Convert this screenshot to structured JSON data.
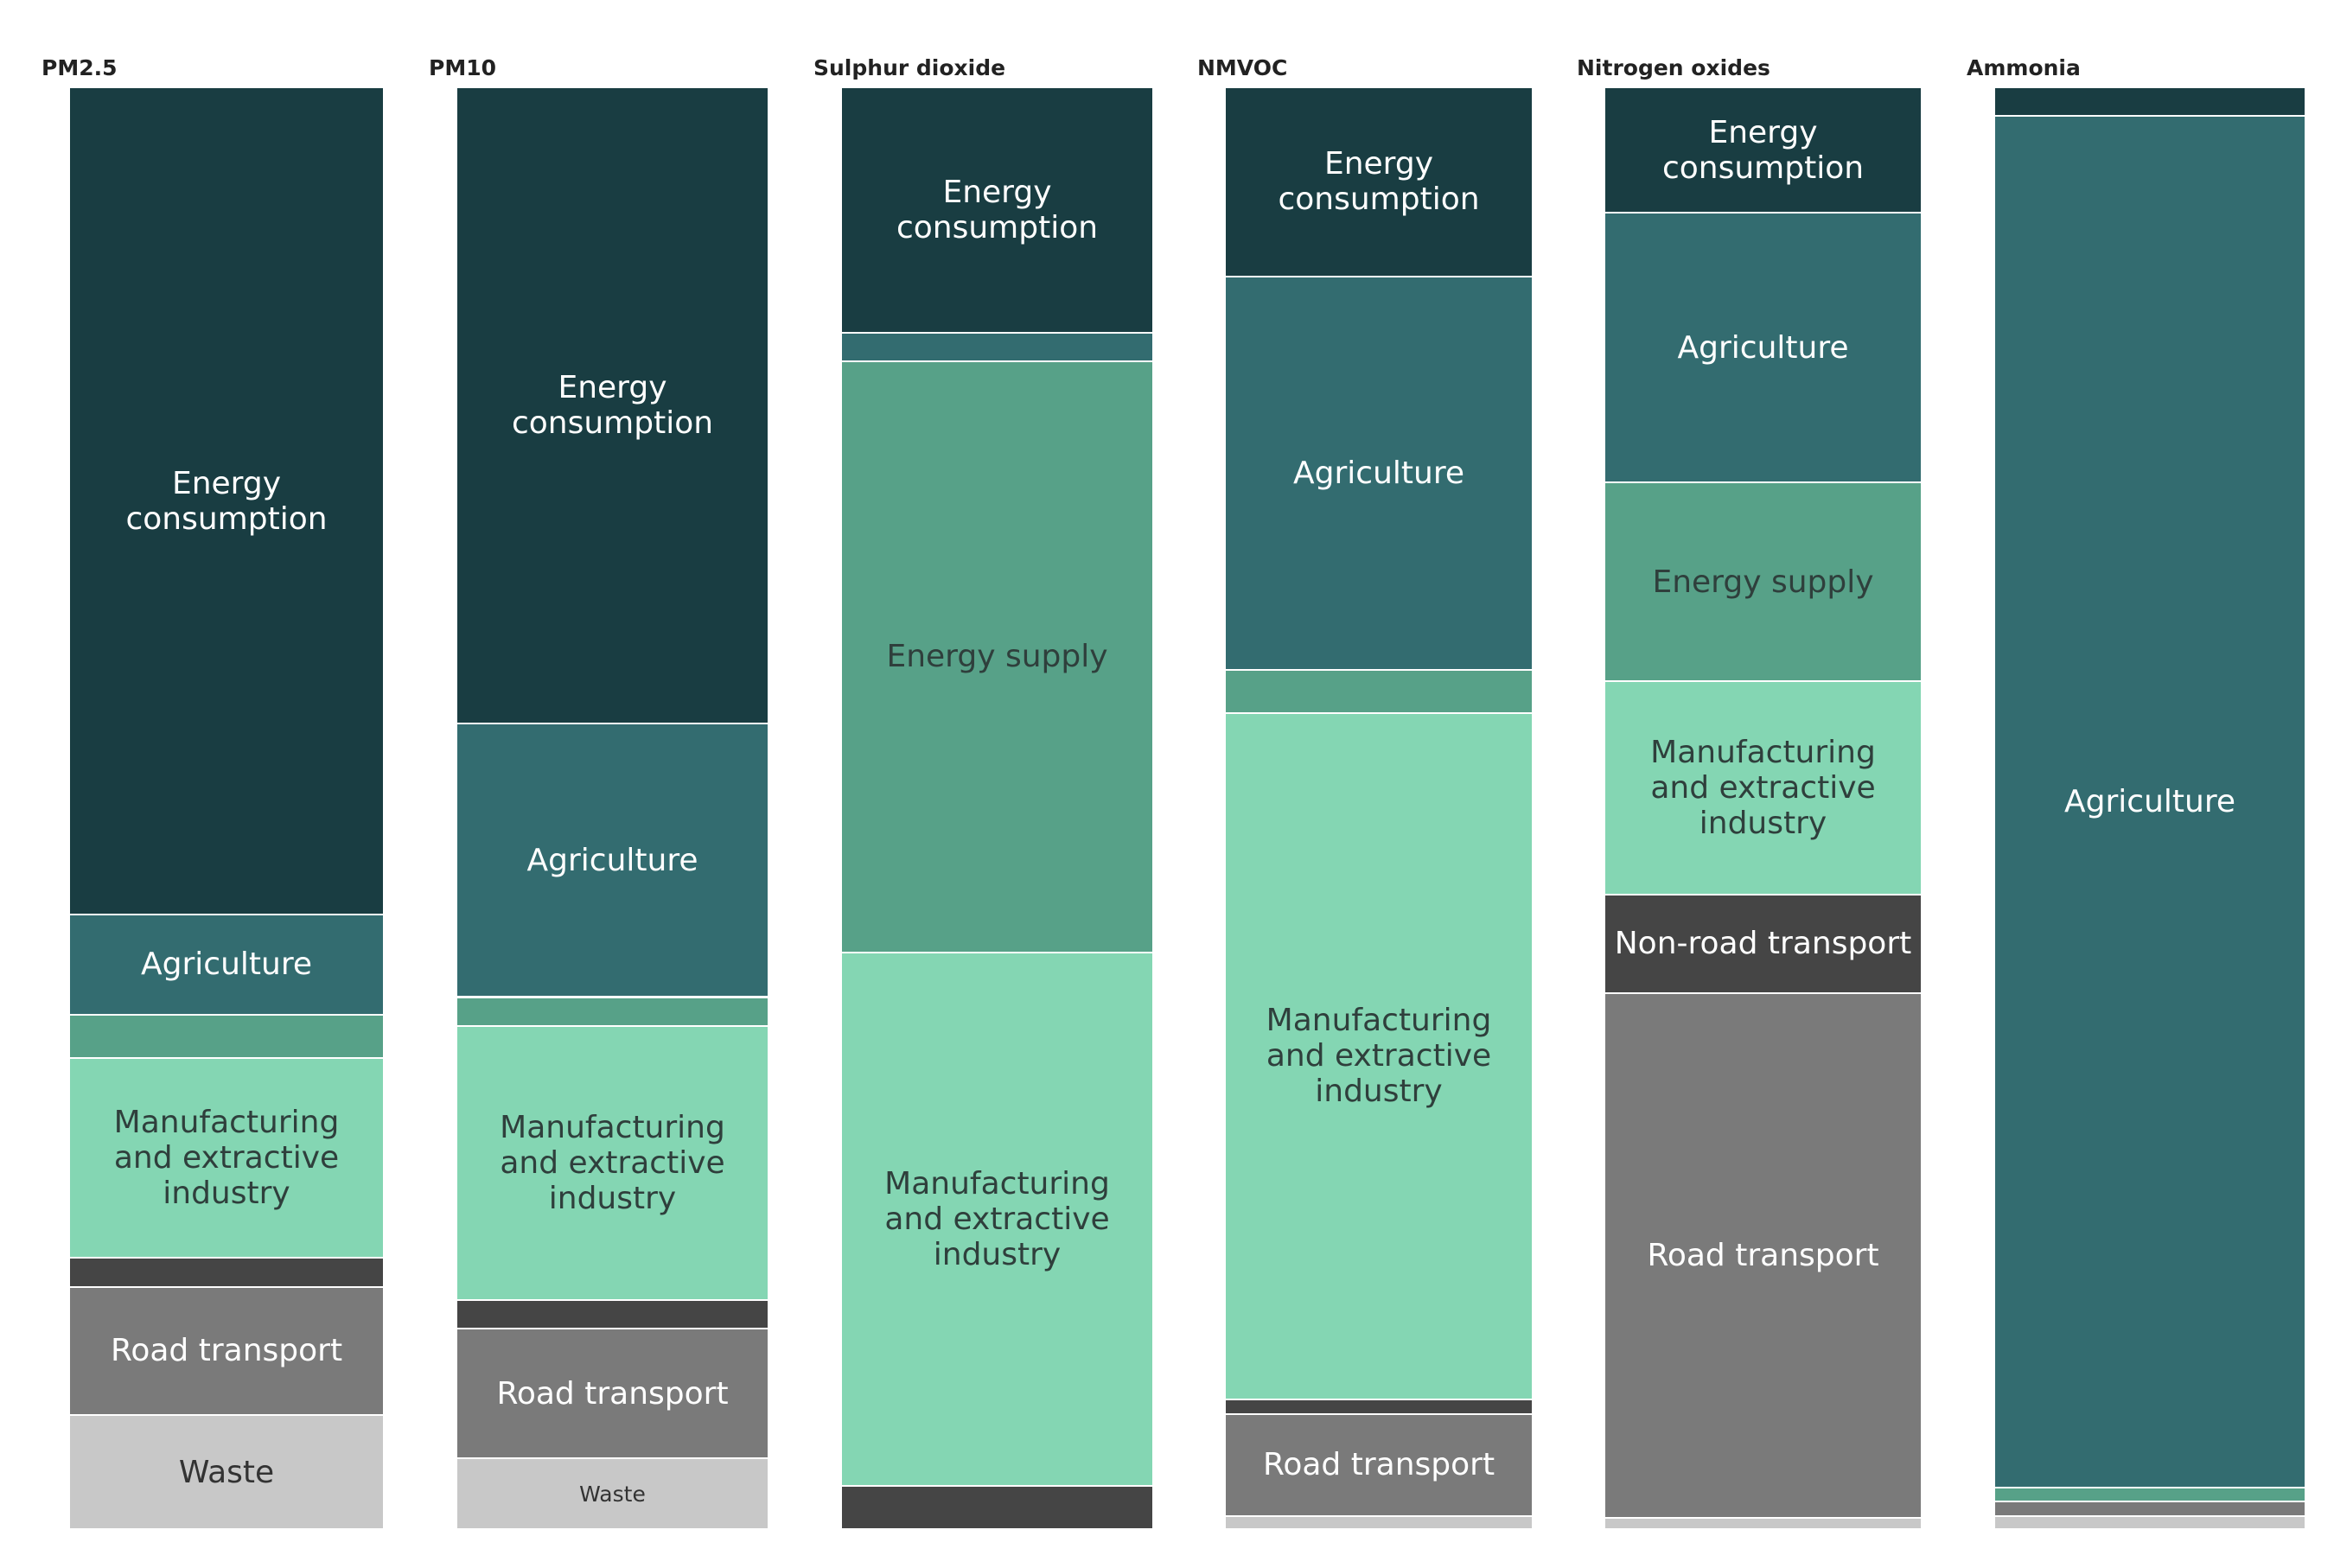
{
  "chart_data": {
    "type": "bar",
    "stacked": true,
    "normalized": true,
    "sectors": [
      {
        "key": "energy_consumption",
        "name": "Energy consumption",
        "color": "#193d42",
        "text_color": "#ffffff"
      },
      {
        "key": "agriculture",
        "name": "Agriculture",
        "color": "#336c70",
        "text_color": "#ffffff"
      },
      {
        "key": "energy_supply",
        "name": "Energy supply",
        "color": "#57a188",
        "text_color": "#2f3f3c"
      },
      {
        "key": "manufacturing",
        "name": "Manufacturing and extractive industry",
        "color": "#84d6b3",
        "text_color": "#2f3f3c"
      },
      {
        "key": "non_road_transport",
        "name": "Non-road transport",
        "color": "#454545",
        "text_color": "#ffffff"
      },
      {
        "key": "road_transport",
        "name": "Road transport",
        "color": "#7a7a7a",
        "text_color": "#ffffff"
      },
      {
        "key": "waste",
        "name": "Waste",
        "color": "#c8c8c8",
        "text_color": "#333333"
      }
    ],
    "series": [
      {
        "name": "PM2.5",
        "values": [
          57.4,
          6.9,
          3.0,
          13.9,
          2.0,
          8.9,
          7.9
        ],
        "labels": [
          "Energy\nconsumption",
          "Agriculture",
          "",
          "Manufacturing\nand extractive\nindustry",
          "",
          "Road transport",
          "Waste"
        ],
        "small_labels": []
      },
      {
        "name": "PM10",
        "values": [
          44.1,
          19.0,
          2.0,
          19.0,
          2.0,
          9.0,
          4.9
        ],
        "labels": [
          "Energy\nconsumption",
          "Agriculture",
          "",
          "Manufacturing\nand extractive\nindustry",
          "",
          "Road transport",
          "Waste"
        ],
        "small_labels": [
          6
        ]
      },
      {
        "name": "Sulphur dioxide",
        "values": [
          17.0,
          2.0,
          41.0,
          37.0,
          3.0,
          0,
          0
        ],
        "labels": [
          "Energy\nconsumption",
          "",
          "Energy supply",
          "Manufacturing\nand extractive\nindustry",
          "",
          "",
          ""
        ],
        "small_labels": []
      },
      {
        "name": "NMVOC",
        "values": [
          13.1,
          27.3,
          3.0,
          47.6,
          1.0,
          7.1,
          0.9
        ],
        "labels": [
          "Energy\nconsumption",
          "Agriculture",
          "",
          "Manufacturing\nand extractive\nindustry",
          "",
          "Road transport",
          ""
        ],
        "small_labels": []
      },
      {
        "name": "Nitrogen oxides",
        "values": [
          8.7,
          18.7,
          13.8,
          14.8,
          6.8,
          36.4,
          0.8
        ],
        "labels": [
          "Energy\nconsumption",
          "Agriculture",
          "Energy supply",
          "Manufacturing\nand extractive\nindustry",
          "Non-road transport",
          "Road transport",
          ""
        ],
        "small_labels": []
      },
      {
        "name": "Ammonia",
        "values": [
          2.0,
          95.1,
          1.0,
          0,
          0,
          1.0,
          0.9
        ],
        "labels": [
          "",
          "Agriculture",
          "",
          "",
          "",
          "",
          ""
        ],
        "small_labels": []
      }
    ]
  }
}
